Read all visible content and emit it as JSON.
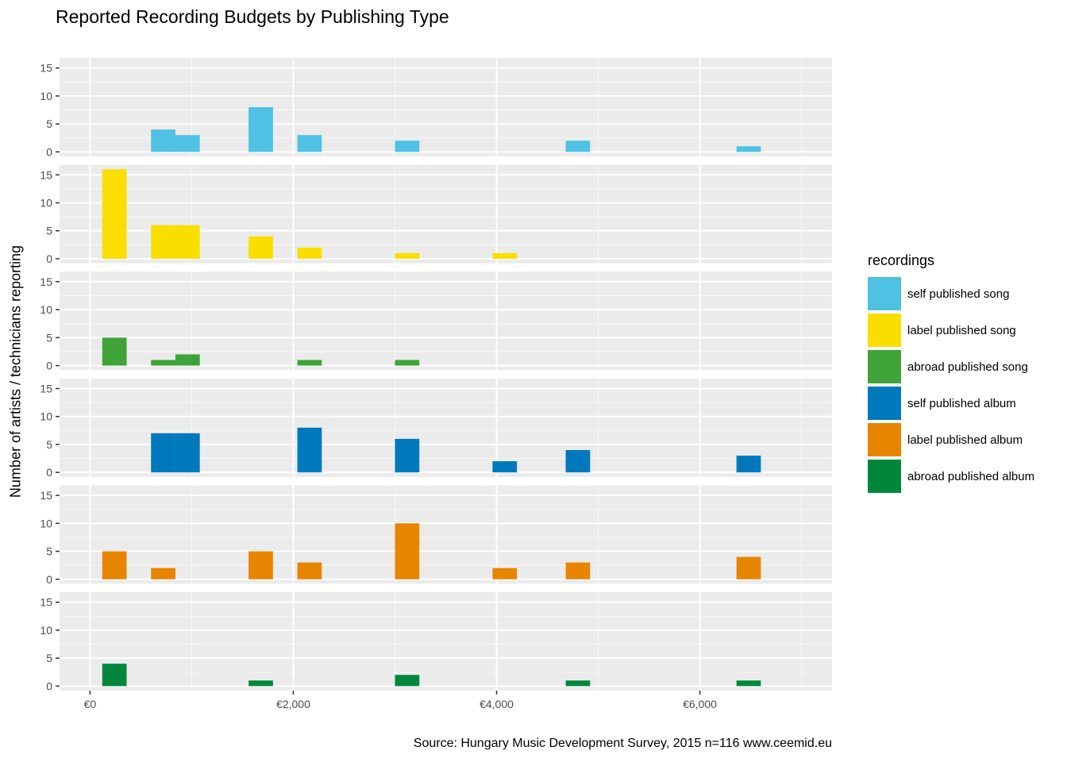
{
  "chart_data": {
    "type": "bar",
    "title": "Reported Recording Budgets by Publishing Type",
    "ylabel": "Number of artists / technicians reporting",
    "xlabel": "",
    "caption": "Source: Hungary Music Development Survey, 2015 n=116 www.ceemid.eu",
    "legend_title": "recordings",
    "legend_position": "right",
    "grid": true,
    "xlim": [
      -300,
      7300
    ],
    "ylim": [
      0,
      16
    ],
    "bin_width": 240,
    "x_ticks": [
      {
        "value": 0,
        "label": "€0"
      },
      {
        "value": 2000,
        "label": "€2,000"
      },
      {
        "value": 4000,
        "label": "€4,000"
      },
      {
        "value": 6000,
        "label": "€6,000"
      }
    ],
    "y_ticks": [
      0,
      5,
      10,
      15
    ],
    "series": [
      {
        "name": "self published song",
        "color": "#4FC1E3",
        "points": [
          [
            720,
            4
          ],
          [
            960,
            3
          ],
          [
            1680,
            8
          ],
          [
            2160,
            3
          ],
          [
            3120,
            2
          ],
          [
            4800,
            2
          ],
          [
            6480,
            1
          ]
        ]
      },
      {
        "name": "label published song",
        "color": "#FADE00",
        "points": [
          [
            240,
            16
          ],
          [
            720,
            6
          ],
          [
            960,
            6
          ],
          [
            1680,
            4
          ],
          [
            2160,
            2
          ],
          [
            3120,
            1
          ],
          [
            4080,
            1
          ]
        ]
      },
      {
        "name": "abroad published song",
        "color": "#40A338",
        "points": [
          [
            240,
            5
          ],
          [
            720,
            1
          ],
          [
            960,
            2
          ],
          [
            2160,
            1
          ],
          [
            3120,
            1
          ]
        ]
      },
      {
        "name": "self published album",
        "color": "#0079BC",
        "points": [
          [
            720,
            7
          ],
          [
            960,
            7
          ],
          [
            2160,
            8
          ],
          [
            3120,
            6
          ],
          [
            4080,
            2
          ],
          [
            4800,
            4
          ],
          [
            6480,
            3
          ]
        ]
      },
      {
        "name": "label published album",
        "color": "#E78500",
        "points": [
          [
            240,
            5
          ],
          [
            720,
            2
          ],
          [
            1680,
            5
          ],
          [
            2160,
            3
          ],
          [
            3120,
            10
          ],
          [
            4080,
            2
          ],
          [
            4800,
            3
          ],
          [
            6480,
            4
          ]
        ]
      },
      {
        "name": "abroad published album",
        "color": "#00873C",
        "points": [
          [
            240,
            4
          ],
          [
            1680,
            1
          ],
          [
            3120,
            2
          ],
          [
            4800,
            1
          ],
          [
            6480,
            1
          ]
        ]
      }
    ]
  }
}
